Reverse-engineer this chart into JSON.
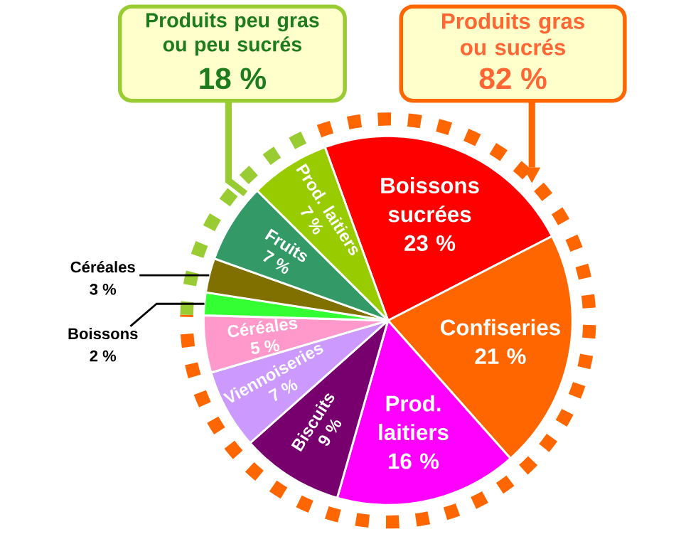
{
  "chart_data": {
    "type": "pie",
    "categories": [
      "Boissons sucrées",
      "Confiseries",
      "Prod. laitiers",
      "Biscuits",
      "Viennoiseries",
      "Céréales",
      "Boissons",
      "Céréales",
      "Fruits",
      "Prod. laitiers"
    ],
    "values": [
      23,
      21,
      16,
      9,
      7,
      5,
      2,
      3,
      7,
      7
    ],
    "colors": [
      "#ff0000",
      "#ff6600",
      "#ff00ff",
      "#77006e",
      "#cc99ff",
      "#ff99cc",
      "#33ff33",
      "#807000",
      "#339966",
      "#99cc00"
    ],
    "value_labels": [
      "23 %",
      "21 %",
      "16 %",
      "9 %",
      "7 %",
      "5 %",
      "2 %",
      "3 %",
      "7 %",
      "7 %"
    ],
    "annotations": [
      "Produits peu gras ou peu sucrés",
      "18 %",
      "Produits gras ou sucrés",
      "82 %"
    ]
  }
}
